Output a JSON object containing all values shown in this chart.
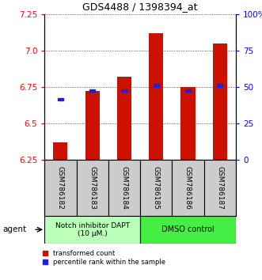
{
  "title": "GDS4488 / 1398394_at",
  "categories": [
    "GSM786182",
    "GSM786183",
    "GSM786184",
    "GSM786185",
    "GSM786186",
    "GSM786187"
  ],
  "bar_bottom": 6.25,
  "red_bar_tops": [
    6.37,
    6.72,
    6.82,
    7.12,
    6.75,
    7.05
  ],
  "blue_y": [
    6.655,
    6.715,
    6.715,
    6.748,
    6.715,
    6.748
  ],
  "ylim": [
    6.25,
    7.25
  ],
  "y_ticks_left": [
    6.25,
    6.5,
    6.75,
    7.0,
    7.25
  ],
  "y_ticks_right": [
    0,
    25,
    50,
    75,
    100
  ],
  "y_labels_right": [
    "0",
    "25",
    "50",
    "75",
    "100%"
  ],
  "bar_color": "#cc1100",
  "blue_color": "#2222cc",
  "group1_label": "Notch inhibitor DAPT\n(10 μM.)",
  "group2_label": "DMSO control",
  "group1_color": "#bbffbb",
  "group2_color": "#44ee44",
  "agent_label": "agent",
  "legend_red": "transformed count",
  "legend_blue": "percentile rank within the sample",
  "bar_width": 0.45,
  "label_box_color": "#cccccc"
}
